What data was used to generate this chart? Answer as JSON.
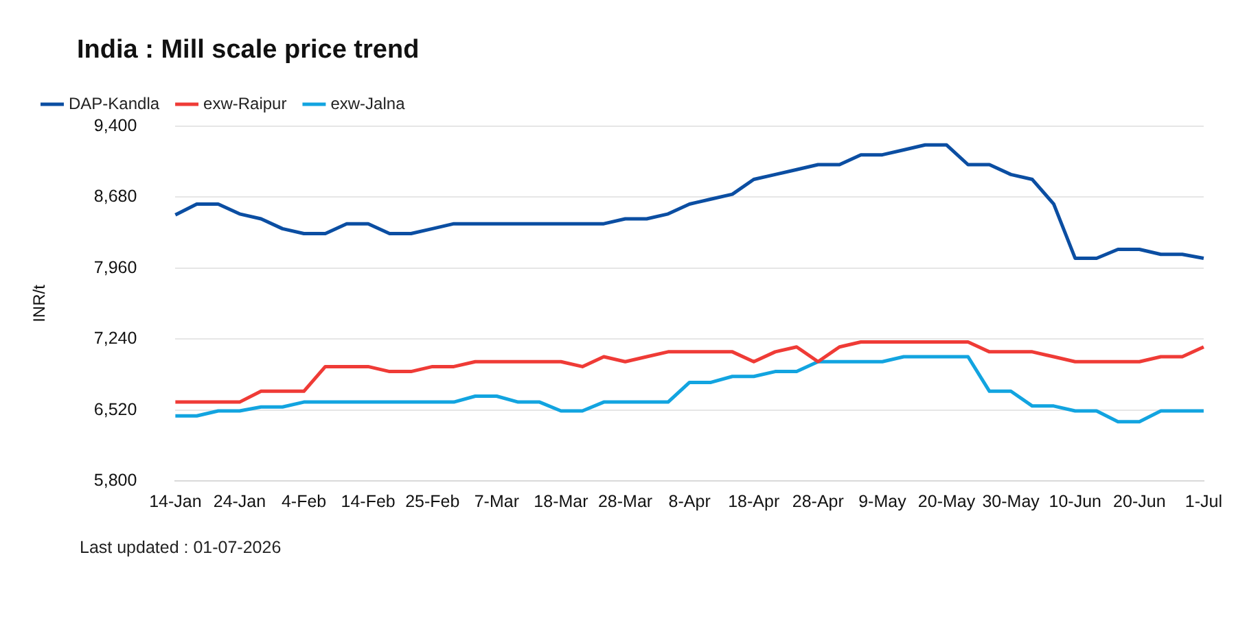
{
  "chart_data": {
    "type": "line",
    "title": "India : Mill scale price trend",
    "ylabel": "INR/t",
    "categories": [
      "14-Jan",
      null,
      null,
      "24-Jan",
      null,
      null,
      "4-Feb",
      null,
      null,
      "14-Feb",
      null,
      null,
      "25-Feb",
      null,
      null,
      "7-Mar",
      null,
      null,
      "18-Mar",
      null,
      null,
      "28-Mar",
      null,
      null,
      "8-Apr",
      null,
      null,
      "18-Apr",
      null,
      null,
      "28-Apr",
      null,
      null,
      "9-May",
      null,
      null,
      "20-May",
      null,
      null,
      "30-May",
      null,
      null,
      "10-Jun",
      null,
      null,
      "20-Jun",
      null,
      null,
      "1-Jul"
    ],
    "series": [
      {
        "name": "DAP-Kandla",
        "color": "#0b4ea2",
        "values": [
          8500,
          8610,
          8610,
          8510,
          8460,
          8360,
          8310,
          8310,
          8410,
          8410,
          8310,
          8310,
          8360,
          8410,
          8410,
          8410,
          8410,
          8410,
          8410,
          8410,
          8410,
          8460,
          8460,
          8510,
          8610,
          8660,
          8710,
          8860,
          8910,
          8960,
          9010,
          9010,
          9110,
          9110,
          9160,
          9210,
          9210,
          9010,
          9010,
          8910,
          8860,
          8610,
          8060,
          8060,
          8150,
          8150,
          8100,
          8100,
          8060
        ]
      },
      {
        "name": "exw-Raipur",
        "color": "#ef3b36",
        "values": [
          6600,
          6600,
          6600,
          6600,
          6710,
          6710,
          6710,
          6960,
          6960,
          6960,
          6910,
          6910,
          6960,
          6960,
          7010,
          7010,
          7010,
          7010,
          7010,
          6960,
          7060,
          7010,
          7060,
          7110,
          7110,
          7110,
          7110,
          7010,
          7110,
          7160,
          7010,
          7160,
          7210,
          7210,
          7210,
          7210,
          7210,
          7210,
          7110,
          7110,
          7110,
          7060,
          7010,
          7010,
          7010,
          7010,
          7060,
          7060,
          7160
        ]
      },
      {
        "name": "exw-Jalna",
        "color": "#12a4e0",
        "values": [
          6460,
          6460,
          6510,
          6510,
          6550,
          6550,
          6600,
          6600,
          6600,
          6600,
          6600,
          6600,
          6600,
          6600,
          6660,
          6660,
          6600,
          6600,
          6510,
          6510,
          6600,
          6600,
          6600,
          6600,
          6800,
          6800,
          6860,
          6860,
          6910,
          6910,
          7010,
          7010,
          7010,
          7010,
          7060,
          7060,
          7060,
          7060,
          6710,
          6710,
          6560,
          6560,
          6510,
          6510,
          6400,
          6400,
          6510,
          6510,
          6510
        ]
      }
    ],
    "ylim": [
      5800,
      9400
    ],
    "yticks": [
      {
        "value": 5800,
        "label": "5,800"
      },
      {
        "value": 6520,
        "label": "6,520"
      },
      {
        "value": 7240,
        "label": "7,240"
      },
      {
        "value": 7960,
        "label": "7,960"
      },
      {
        "value": 8680,
        "label": "8,680"
      },
      {
        "value": 9400,
        "label": "9,400"
      }
    ],
    "grid": "y",
    "legend": "top left",
    "marker": "none",
    "line_style": "solid",
    "annotations": [
      "Last updated : 01-07-2026"
    ]
  }
}
